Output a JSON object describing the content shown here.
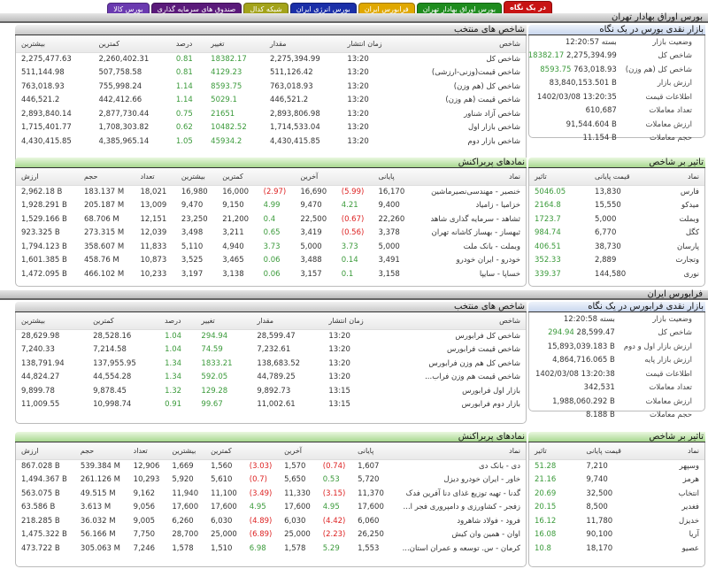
{
  "tabs": [
    {
      "label": "در یک نگاه",
      "color": "#c81414"
    },
    {
      "label": "بورس اوراق بهادار تهران",
      "color": "#1e8c1e"
    },
    {
      "label": "فرابورس ایران",
      "color": "#e0a800"
    },
    {
      "label": "بورس انرژی ایران",
      "color": "#1a2fa8"
    },
    {
      "label": "شبکه کدال",
      "color": "#a3a31a"
    },
    {
      "label": "صندوق های سرمایه گذاری",
      "color": "#5a1a7a"
    },
    {
      "label": "بورس کالا",
      "color": "#6a3ab0"
    }
  ],
  "markets": [
    {
      "title": "بورس اوراق بهادار تهران",
      "snapshot": {
        "title": "بازار نقدی بورس در یک نگاه",
        "rows": [
          {
            "label": "وضعیت بازار",
            "value": "بسته 12:20:57",
            "change": ""
          },
          {
            "label": "شاخص کل",
            "value": "2,275,394.99",
            "change": "18382.17"
          },
          {
            "label": "شاخص کل (هم وزن)",
            "value": "763,018.93",
            "change": "8593.75"
          },
          {
            "label": "ارزش بازار",
            "value": "83,840,153.501 B",
            "change": ""
          },
          {
            "label": "اطلاعات قیمت",
            "value": "1402/03/08 13:20:35",
            "change": ""
          },
          {
            "label": "تعداد معاملات",
            "value": "610,687",
            "change": ""
          },
          {
            "label": "ارزش معاملات",
            "value": "91,544.604 B",
            "change": ""
          },
          {
            "label": "حجم معاملات",
            "value": "11.154 B",
            "change": ""
          }
        ]
      },
      "indices": {
        "title": "شاخص های منتخب",
        "headers": [
          "شاخص",
          "زمان انتشار",
          "مقدار",
          "تغییر",
          "درصد",
          "کمترین",
          "بیشترین"
        ],
        "rows": [
          [
            "شاخص کل",
            "13:20",
            "2,275,394.99",
            "18382.17",
            "0.81",
            "2,260,402.31",
            "2,275,477.63"
          ],
          [
            "شاخص قیمت(وزنی-ارزشی)",
            "13:20",
            "511,126.42",
            "4129.23",
            "0.81",
            "507,758.58",
            "511,144.98"
          ],
          [
            "شاخص کل (هم وزن)",
            "13:20",
            "763,018.93",
            "8593.75",
            "1.14",
            "755,998.24",
            "763,018.93"
          ],
          [
            "شاخص قیمت (هم وزن)",
            "13:20",
            "446,521.2",
            "5029.1",
            "1.14",
            "442,412.66",
            "446,521.2"
          ],
          [
            "شاخص آزاد شناور",
            "13:20",
            "2,893,806.98",
            "21651",
            "0.75",
            "2,877,730.44",
            "2,893,840.14"
          ],
          [
            "شاخص بازار اول",
            "13:20",
            "1,714,533.04",
            "10482.52",
            "0.62",
            "1,708,303.82",
            "1,715,401.77"
          ],
          [
            "شاخص بازار دوم",
            "13:20",
            "4,430,415.85",
            "45934.2",
            "1.05",
            "4,385,965.14",
            "4,430,415.85"
          ]
        ]
      },
      "active": {
        "title": "نمادهای پربراکنش",
        "headers": [
          "نماد",
          "پایانی",
          "",
          "آخرین",
          "",
          "کمترین",
          "بیشترین",
          "تعداد",
          "حجم",
          "ارزش"
        ],
        "rows": [
          [
            "خنصیر - مهندسی‌نصیرماشین",
            "16,170",
            "(5.99)",
            "16,690",
            "(2.97)",
            "16,000",
            "16,980",
            "18,021",
            "183.137 M",
            "2,962.18 B"
          ],
          [
            "خزامیا - زامیاد",
            "9,400",
            "4.21",
            "9,470",
            "4.99",
            "9,150",
            "9,470",
            "13,009",
            "205.187 M",
            "1,928.291 B"
          ],
          [
            "ثشاهد - سرمایه گذاری شاهد",
            "22,260",
            "(0.67)",
            "22,500",
            "0.4",
            "21,200",
            "23,250",
            "12,151",
            "68.706 M",
            "1,529.166 B"
          ],
          [
            "ثبهساز - بهساز کاشانه تهران",
            "3,378",
            "(0.56)",
            "3,419",
            "0.65",
            "3,211",
            "3,498",
            "12,039",
            "273.315 M",
            "923.325 B"
          ],
          [
            "وبملت - بانک ملت",
            "5,000",
            "3.73",
            "5,000",
            "3.73",
            "4,940",
            "5,110",
            "11,833",
            "358.607 M",
            "1,794.123 B"
          ],
          [
            "خودرو - ایران خودرو",
            "3,491",
            "0.14",
            "3,488",
            "0.06",
            "3,465",
            "3,525",
            "10,873",
            "458.76 M",
            "1,601.385 B"
          ],
          [
            "خساپا - سایپا",
            "3,158",
            "0.1",
            "3,157",
            "0.06",
            "3,138",
            "3,197",
            "10,233",
            "466.102 M",
            "1,472.095 B"
          ]
        ]
      },
      "impact": {
        "title": "تاثیر بر شاخص",
        "headers": [
          "نماد",
          "قیمت پایانی",
          "تاثیر"
        ],
        "rows": [
          [
            "فارس",
            "13,830",
            "5046.05"
          ],
          [
            "میدکو",
            "15,550",
            "2164.8"
          ],
          [
            "وبملت",
            "5,000",
            "1723.7"
          ],
          [
            "کگل",
            "6,770",
            "984.74"
          ],
          [
            "پارسان",
            "38,730",
            "406.51"
          ],
          [
            "وتجارت",
            "2,889",
            "352.33"
          ],
          [
            "نوری",
            "144,580",
            "339.37"
          ]
        ]
      }
    },
    {
      "title": "فرابورس ایران",
      "snapshot": {
        "title": "بازار نقدی فرابورس در یک نگاه",
        "rows": [
          {
            "label": "وضعیت بازار",
            "value": "بسته 12:20:58",
            "change": ""
          },
          {
            "label": "شاخص کل",
            "value": "28,599.47",
            "change": "294.94"
          },
          {
            "label": "ارزش بازار اول و دوم",
            "value": "15,893,039.183 B",
            "change": ""
          },
          {
            "label": "ارزش بازار پایه",
            "value": "4,864,716.065 B",
            "change": ""
          },
          {
            "label": "اطلاعات قیمت",
            "value": "1402/03/08 13:20:38",
            "change": ""
          },
          {
            "label": "تعداد معاملات",
            "value": "342,531",
            "change": ""
          },
          {
            "label": "ارزش معاملات",
            "value": "1,988,060.292 B",
            "change": ""
          },
          {
            "label": "حجم معاملات",
            "value": "8.188 B",
            "change": ""
          }
        ]
      },
      "indices": {
        "title": "شاخص های منتخب",
        "headers": [
          "شاخص",
          "زمان انتشار",
          "مقدار",
          "تغییر",
          "درصد",
          "کمترین",
          "بیشترین"
        ],
        "rows": [
          [
            "شاخص کل فرابورس",
            "13:20",
            "28,599.47",
            "294.94",
            "1.04",
            "28,528.16",
            "28,629.98"
          ],
          [
            "شاخص قیمت فرابورس",
            "13:20",
            "7,232.61",
            "74.59",
            "1.04",
            "7,214.58",
            "7,240.33"
          ],
          [
            "شاخص کل هم وزن فرابورس",
            "13:20",
            "138,683.52",
            "1833.21",
            "1.34",
            "137,955.95",
            "138,791.94"
          ],
          [
            "شاخص قیمت هم وزن فراب...",
            "13:20",
            "44,789.25",
            "592.05",
            "1.34",
            "44,554.28",
            "44,824.27"
          ],
          [
            "بازار اول فرابورس",
            "13:15",
            "9,892.73",
            "129.28",
            "1.32",
            "9,878.45",
            "9,899.78"
          ],
          [
            "بازار دوم فرابورس",
            "13:15",
            "11,002.61",
            "99.67",
            "0.91",
            "10,998.74",
            "11,009.55"
          ]
        ]
      },
      "active": {
        "title": "نمادهای پربراکنش",
        "headers": [
          "نماد",
          "پایانی",
          "",
          "آخرین",
          "",
          "کمترین",
          "بیشترین",
          "تعداد",
          "حجم",
          "ارزش"
        ],
        "rows": [
          [
            "دی - بانک دی",
            "1,607",
            "(0.74)",
            "1,570",
            "(3.03)",
            "1,560",
            "1,669",
            "12,906",
            "539.384 M",
            "867.028 B"
          ],
          [
            "خاور - ایران خودرو دیزل",
            "5,720",
            "0.53",
            "5,650",
            "(0.7)",
            "5,610",
            "5,920",
            "10,293",
            "261.126 M",
            "1,494.367 B"
          ],
          [
            "گدنا - تهیه توزیع غذای دنا آفرین فدک",
            "11,370",
            "(3.15)",
            "11,330",
            "(3.49)",
            "11,100",
            "11,940",
            "9,162",
            "49.515 M",
            "563.075 B"
          ],
          [
            "زفجر - کشاورزی و دامپروری فجر ا...",
            "17,600",
            "4.95",
            "17,600",
            "4.95",
            "17,600",
            "17,600",
            "9,056",
            "3.613 M",
            "63.586 B"
          ],
          [
            "فرود - فولاد شاهرود",
            "6,060",
            "(4.42)",
            "6,030",
            "(4.89)",
            "6,030",
            "6,260",
            "9,005",
            "36.032 M",
            "218.285 B"
          ],
          [
            "اوان - همین وان کیش",
            "26,250",
            "(2.23)",
            "25,000",
            "(6.89)",
            "25,000",
            "28,700",
            "7,750",
            "56.166 M",
            "1,475.322 B"
          ],
          [
            "کرمان - س. توسعه و عمران استان...",
            "1,553",
            "5.29",
            "1,578",
            "6.98",
            "1,510",
            "1,578",
            "7,246",
            "305.063 M",
            "473.722 B"
          ]
        ]
      },
      "impact": {
        "title": "تاثیر بر شاخص",
        "headers": [
          "نماد",
          "قیمت پایانی",
          "تاثیر"
        ],
        "rows": [
          [
            "وسپهر",
            "7,210",
            "51.28"
          ],
          [
            "هرمز",
            "9,740",
            "21.16"
          ],
          [
            "انتخاب",
            "32,500",
            "20.69"
          ],
          [
            "فغدیر",
            "8,500",
            "20.15"
          ],
          [
            "خدیزل",
            "11,780",
            "16.12"
          ],
          [
            "آریا",
            "90,100",
            "16.08"
          ],
          [
            "عصیو",
            "18,170",
            "10.8"
          ]
        ]
      }
    }
  ]
}
